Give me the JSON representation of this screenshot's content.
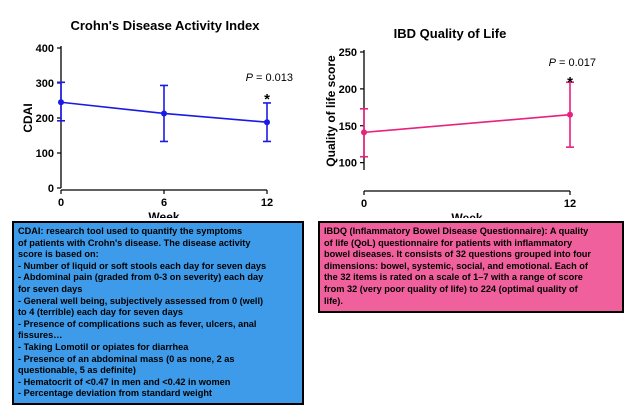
{
  "chart_data": [
    {
      "type": "line",
      "title": "Crohn's Disease Activity Index",
      "xlabel": "Week",
      "ylabel": "CDAI",
      "x": [
        0,
        6,
        12
      ],
      "xticks": [
        0,
        6,
        12
      ],
      "yticks": [
        0,
        100,
        200,
        300,
        400
      ],
      "xlim": [
        0,
        12
      ],
      "ylim": [
        0,
        400
      ],
      "series": [
        {
          "values": [
            245,
            213,
            188
          ],
          "error_upper": [
            302,
            293,
            243
          ],
          "error_lower": [
            192,
            133,
            133
          ],
          "color": "#1a1ae6"
        }
      ],
      "annotations": [
        {
          "text_prefix": "P",
          "text_suffix": " = 0.013"
        },
        {
          "text": "*"
        }
      ]
    },
    {
      "type": "line",
      "title": "IBD Quality of Life",
      "xlabel": "Week",
      "ylabel": "Quality of life score",
      "x": [
        0,
        12
      ],
      "xticks": [
        0,
        12
      ],
      "yticks": [
        100,
        150,
        200,
        250
      ],
      "xlim": [
        0,
        12
      ],
      "ylim": [
        90,
        250
      ],
      "series": [
        {
          "values": [
            141,
            165
          ],
          "error_upper": [
            173,
            209
          ],
          "error_lower": [
            108,
            121
          ],
          "color": "#e8207f"
        }
      ],
      "annotations": [
        {
          "text_prefix": "P",
          "text_suffix": " = 0.017"
        },
        {
          "text": "*"
        }
      ]
    }
  ],
  "cdai_box": {
    "lines": [
      "CDAI: research tool used to quantify the symptoms",
      "of patients with Crohn's disease. The disease activity",
      "score is based on:",
      "- Number of liquid or soft stools each day for seven days",
      "- Abdominal pain (graded from 0-3 on severity) each day",
      "for seven days",
      "- General well being, subjectively assessed from 0 (well)",
      "to 4 (terrible) each day for seven days",
      "- Presence of complications such as fever, ulcers, anal",
      "fissures…",
      "- Taking Lomotil or opiates for diarrhea",
      "- Presence of an abdominal mass (0 as none, 2 as",
      "questionable, 5 as definite)",
      "- Hematocrit of <0.47 in men and <0.42 in women",
      "- Percentage deviation from standard weight"
    ],
    "color": "#3d9be9"
  },
  "ibdq_box": {
    "lines": [
      "IBDQ (Inflammatory Bowel Disease Questionnaire): A quality",
      "of life (QoL) questionnaire for patients with inflammatory",
      "bowel diseases. It consists of 32 questions grouped into four",
      "dimensions: bowel, systemic, social, and emotional. Each of",
      "the 32 items is rated on a scale of 1–7 with a range of score",
      "from 32 (very poor quality of life) to 224 (optimal quality of",
      "life)."
    ],
    "color": "#f0609d"
  }
}
